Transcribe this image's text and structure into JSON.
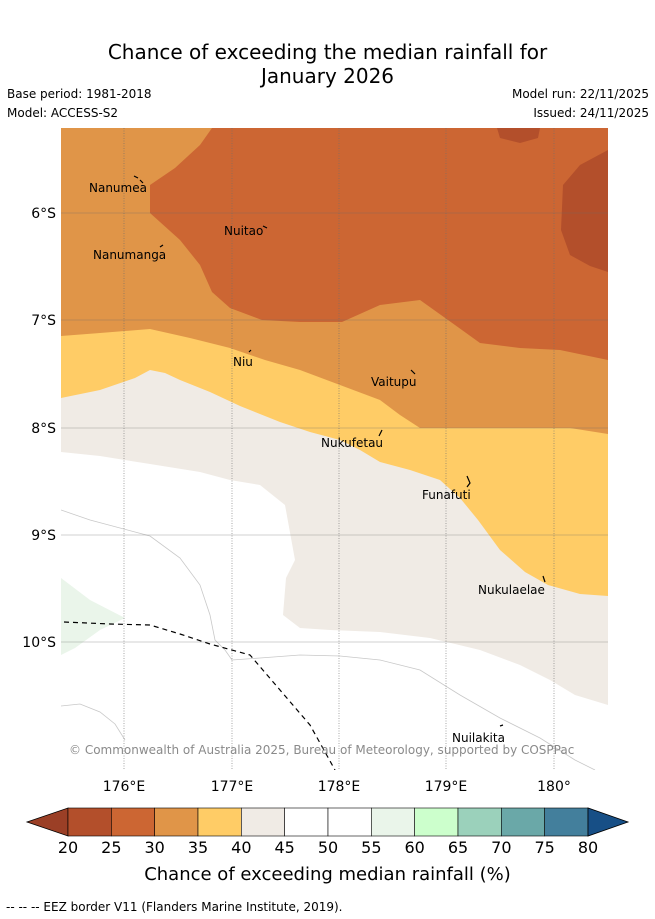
{
  "title": {
    "line1": "Chance of exceeding the median rainfall for",
    "line2": "January 2026"
  },
  "meta": {
    "base_period": "Base period: 1981-2018",
    "model": "Model: ACCESS-S2",
    "model_run": "Model run: 22/11/2025",
    "issued": "Issued: 24/11/2025"
  },
  "map": {
    "lat_labels": [
      "6°S",
      "7°S",
      "8°S",
      "9°S",
      "10°S"
    ],
    "lon_labels": [
      "176°E",
      "177°E",
      "178°E",
      "179°E",
      "180°"
    ],
    "places": [
      "Nanumea",
      "Nanumanga",
      "Nuitao",
      "Niu",
      "Vaitupu",
      "Nukufetau",
      "Funafuti",
      "Nukulaelae",
      "Nuilakita"
    ],
    "copyright": "© Commonwealth of Australia 2025, Bureau of Meteorology, supported by COSPPac"
  },
  "colorbar": {
    "ticks": [
      "20",
      "25",
      "30",
      "35",
      "40",
      "45",
      "50",
      "55",
      "60",
      "65",
      "70",
      "75",
      "80"
    ],
    "colors": [
      "#b34f2b",
      "#cc6633",
      "#e09548",
      "#ffcc66",
      "#f0ebe5",
      "#ffffff",
      "#ffffff",
      "#eaf5ea",
      "#ccffcc",
      "#9bd1bb",
      "#6aa8a8",
      "#437f9c"
    ],
    "low_extend_color": "#9b3f26",
    "high_extend_color": "#174f86",
    "title": "Chance of exceeding median rainfall (%)"
  },
  "legend": {
    "eez": "--  --  -- EEZ border V11 (Flanders Marine Institute, 2019)."
  }
}
